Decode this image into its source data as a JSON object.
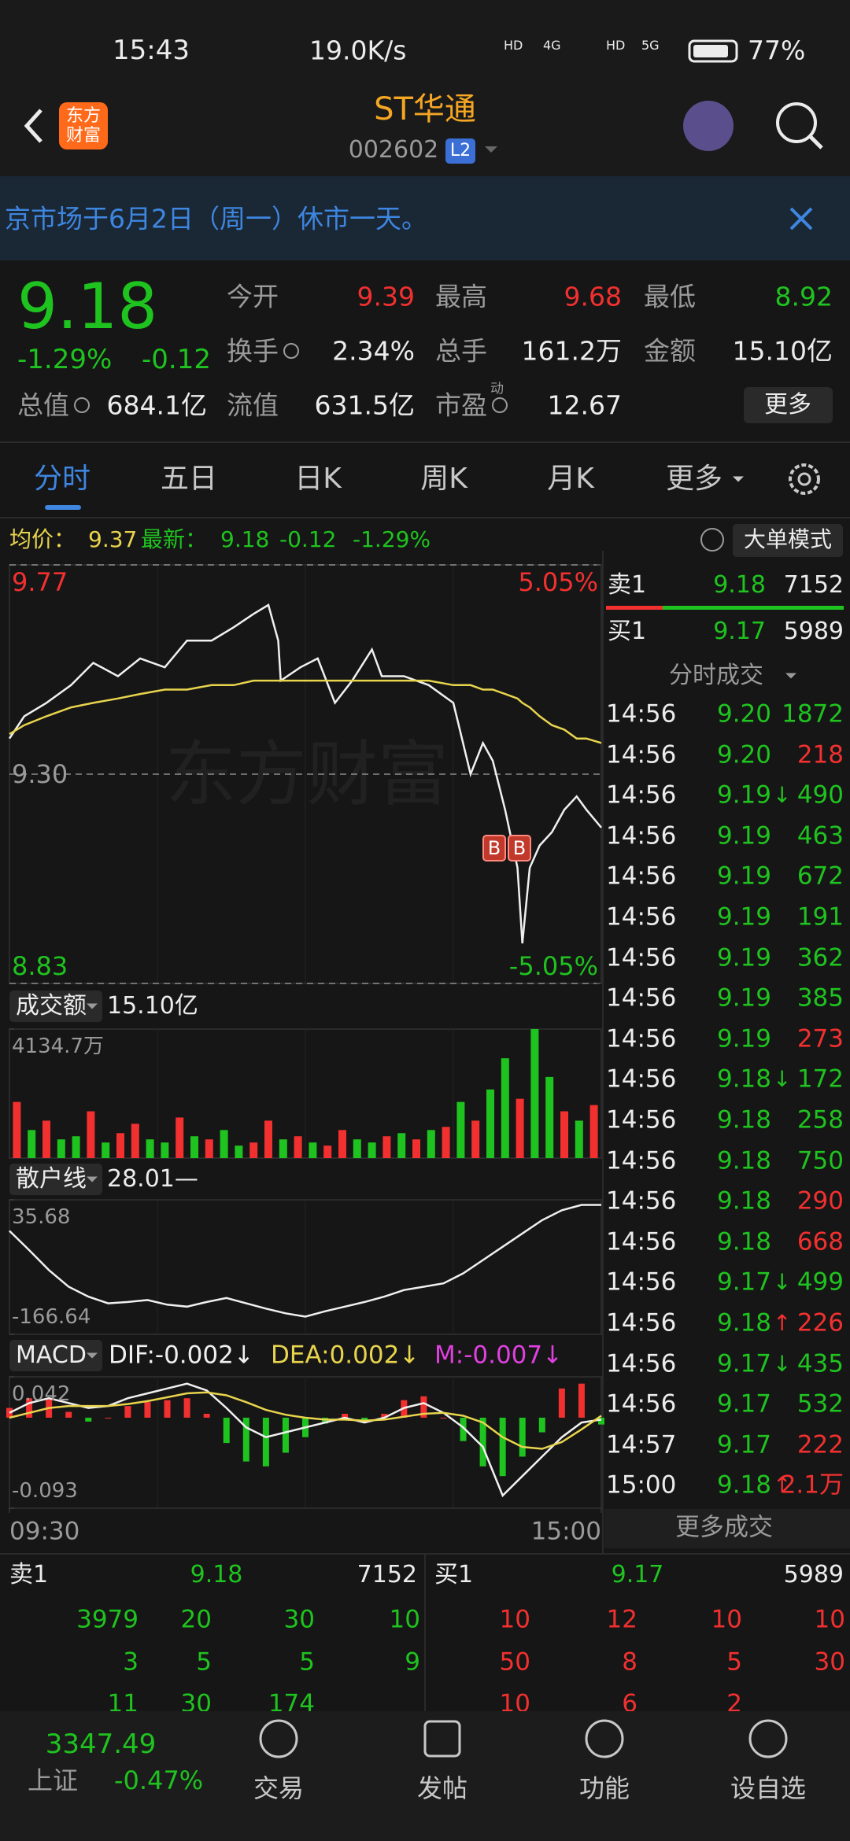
{
  "status_bar": {
    "time": "15:43",
    "speed": "19.0K/s",
    "icons": [
      "HD",
      "4G",
      "HD",
      "5G"
    ],
    "battery": "77%"
  },
  "header": {
    "logo": [
      "东方",
      "财富"
    ],
    "title": "ST华通",
    "code": "002602",
    "level": "L2"
  },
  "notice": {
    "text": "京市场于6月2日（周一）休市一天。"
  },
  "quote": {
    "price": "9.18",
    "change_pct": "-1.29%",
    "change": "-0.12",
    "fields": [
      {
        "label": "今开",
        "value": "9.39",
        "color": "#f23030"
      },
      {
        "label": "最高",
        "value": "9.68",
        "color": "#f23030"
      },
      {
        "label": "最低",
        "value": "8.92",
        "color": "#1fc31f"
      },
      {
        "label": "换手",
        "value": "2.34%"
      },
      {
        "label": "总手",
        "value": "161.2万"
      },
      {
        "label": "金额",
        "value": "15.10亿"
      },
      {
        "label": "总值",
        "value": "684.1亿"
      },
      {
        "label": "流值",
        "value": "631.5亿"
      },
      {
        "label": "市盈",
        "sup": "动",
        "value": "12.67"
      }
    ],
    "more": "更多"
  },
  "tabs": [
    "分时",
    "五日",
    "日K",
    "周K",
    "月K",
    "更多"
  ],
  "info_bar": {
    "avg_label": "均价：",
    "avg": "9.37",
    "latest_label": "最新：",
    "latest": "9.18",
    "change": "-0.12",
    "change_pct": "-1.29%",
    "mode": "大单模式"
  },
  "chart_data": [
    {
      "type": "line",
      "watermark": "东方财富",
      "xlim": [
        0,
        240
      ],
      "x": [
        0,
        6,
        15,
        25,
        34,
        44,
        53,
        63,
        72,
        82,
        91,
        99,
        105,
        109,
        110,
        118,
        125,
        132,
        139,
        147,
        151,
        160,
        170,
        180,
        187,
        192,
        196,
        201,
        206,
        208,
        211,
        215,
        220,
        225,
        230,
        234,
        240
      ],
      "series": [
        {
          "color": "#f0f0f0",
          "values": [
            9.38,
            9.43,
            9.46,
            9.5,
            9.55,
            9.52,
            9.56,
            9.54,
            9.6,
            9.6,
            9.63,
            9.66,
            9.68,
            9.6,
            9.51,
            9.54,
            9.56,
            9.46,
            9.51,
            9.58,
            9.52,
            9.52,
            9.5,
            9.46,
            9.3,
            9.37,
            9.33,
            9.22,
            9.09,
            8.92,
            9.09,
            9.14,
            9.17,
            9.22,
            9.25,
            9.22,
            9.18
          ]
        },
        {
          "color": "#e8d44d",
          "values": [
            9.39,
            9.41,
            9.43,
            9.45,
            9.46,
            9.47,
            9.48,
            9.49,
            9.49,
            9.5,
            9.5,
            9.51,
            9.51,
            9.51,
            9.51,
            9.51,
            9.51,
            9.51,
            9.51,
            9.51,
            9.51,
            9.51,
            9.51,
            9.5,
            9.5,
            9.49,
            9.49,
            9.48,
            9.47,
            9.46,
            9.45,
            9.43,
            9.41,
            9.4,
            9.38,
            9.38,
            9.37
          ]
        }
      ],
      "ylim": [
        8.83,
        9.77
      ],
      "yticks": [
        9.77,
        {
          "value": 9.3,
          "label": "9.30"
        },
        8.83
      ],
      "ytick_colors": [
        "#f23030",
        "#9a9a9a",
        "#1fc31f"
      ],
      "grid": true,
      "y2lim": [
        -5.05,
        5.05
      ],
      "y2ticks": [
        {
          "value": 5.05,
          "label": "5.05%"
        },
        {
          "value": -5.05,
          "label": "-5.05%"
        }
      ],
      "y2tick_colors": [
        "#f23030",
        "#1fc31f"
      ],
      "annotations": [
        "B",
        "B"
      ]
    },
    {
      "type": "bar",
      "title": "成交额",
      "subtitle": "15.10亿",
      "xlim": [
        0,
        240
      ],
      "x": [
        3,
        9,
        15,
        21,
        27,
        33,
        39,
        45,
        51,
        57,
        63,
        69,
        75,
        81,
        87,
        93,
        99,
        105,
        111,
        117,
        123,
        129,
        135,
        141,
        147,
        153,
        159,
        165,
        171,
        177,
        183,
        189,
        195,
        201,
        207,
        213,
        219,
        225,
        231,
        237
      ],
      "values": [
        1800,
        900,
        1200,
        600,
        700,
        1500,
        500,
        800,
        1100,
        600,
        500,
        1300,
        700,
        600,
        900,
        400,
        500,
        1200,
        600,
        700,
        500,
        400,
        900,
        600,
        500,
        700,
        800,
        600,
        900,
        1000,
        1800,
        1200,
        2200,
        3200,
        1900,
        4134.7,
        2600,
        1500,
        1200,
        1700
      ],
      "colors": [
        "#f23030",
        "#1fc31f",
        "#f23030",
        "#1fc31f",
        "#1fc31f",
        "#f23030",
        "#1fc31f",
        "#f23030",
        "#f23030",
        "#1fc31f",
        "#1fc31f",
        "#f23030",
        "#1fc31f",
        "#f23030",
        "#1fc31f",
        "#1fc31f",
        "#f23030",
        "#f23030",
        "#1fc31f",
        "#f23030",
        "#1fc31f",
        "#f23030",
        "#f23030",
        "#1fc31f",
        "#1fc31f",
        "#f23030",
        "#1fc31f",
        "#f23030",
        "#1fc31f",
        "#f23030",
        "#1fc31f",
        "#f23030",
        "#1fc31f",
        "#1fc31f",
        "#f23030",
        "#1fc31f",
        "#1fc31f",
        "#f23030",
        "#1fc31f",
        "#f23030"
      ],
      "ylim": [
        0,
        4134.7
      ],
      "yticks": [
        {
          "value": 4134.7,
          "label": "4134.7万"
        }
      ]
    },
    {
      "type": "line",
      "title": "散户线",
      "subtitle": "28.01—",
      "xlim": [
        0,
        240
      ],
      "x": [
        0,
        8,
        16,
        24,
        32,
        40,
        48,
        56,
        64,
        72,
        80,
        88,
        96,
        104,
        112,
        120,
        128,
        136,
        144,
        152,
        160,
        168,
        176,
        184,
        192,
        200,
        208,
        216,
        224,
        232,
        240
      ],
      "series": [
        {
          "color": "#f0f0f0",
          "values": [
            -11,
            -40,
            -70,
            -95,
            -110,
            -120,
            -118,
            -115,
            -122,
            -125,
            -118,
            -112,
            -120,
            -128,
            -135,
            -140,
            -132,
            -125,
            -118,
            -110,
            -100,
            -95,
            -90,
            -75,
            -55,
            -35,
            -15,
            5,
            20,
            28,
            28.01
          ]
        }
      ],
      "ylim": [
        -166.64,
        35.68
      ],
      "yticks": [
        35.68,
        -166.64
      ]
    },
    {
      "type": "combo",
      "title": "MACD",
      "indicator_labels": [
        "DIF:-0.002↓",
        "DEA:0.002↓",
        "M:-0.007↓"
      ],
      "indicator_colors": [
        "#f0f0f0",
        "#e8d44d",
        "#e040e0"
      ],
      "xlim": [
        0,
        240
      ],
      "x": [
        0,
        8,
        16,
        24,
        32,
        40,
        48,
        56,
        64,
        72,
        80,
        88,
        96,
        104,
        112,
        120,
        128,
        136,
        144,
        152,
        160,
        168,
        176,
        184,
        192,
        200,
        208,
        216,
        224,
        232,
        240
      ],
      "series": [
        {
          "color": "#f0f0f0",
          "values": [
            0.005,
            0.015,
            0.02,
            0.015,
            0.01,
            0.012,
            0.02,
            0.025,
            0.03,
            0.035,
            0.028,
            0.01,
            -0.01,
            -0.02,
            -0.015,
            -0.01,
            -0.005,
            0,
            -0.005,
            0,
            0.01,
            0.015,
            0.005,
            -0.01,
            -0.03,
            -0.08,
            -0.06,
            -0.04,
            -0.02,
            -0.005,
            -0.002
          ]
        },
        {
          "color": "#e8d44d",
          "values": [
            0,
            0.005,
            0.01,
            0.012,
            0.012,
            0.012,
            0.014,
            0.017,
            0.021,
            0.025,
            0.026,
            0.023,
            0.016,
            0.008,
            0.003,
            0,
            -0.002,
            -0.002,
            -0.003,
            -0.002,
            0.001,
            0.004,
            0.005,
            0.002,
            -0.005,
            -0.02,
            -0.03,
            -0.032,
            -0.025,
            -0.012,
            0.002
          ]
        }
      ],
      "histogram": [
        0.01,
        0.02,
        0.02,
        0.006,
        -0.004,
        0,
        0.012,
        0.016,
        0.018,
        0.02,
        0.004,
        -0.026,
        -0.045,
        -0.05,
        -0.036,
        -0.02,
        -0.006,
        0.004,
        -0.004,
        0.004,
        0.018,
        0.022,
        0,
        -0.024,
        -0.05,
        -0.06,
        -0.04,
        -0.015,
        0.03,
        0.035,
        -0.007
      ],
      "histogram_colors": [
        "#f23030",
        "#1fc31f"
      ],
      "ylim": [
        -0.093,
        0.042
      ],
      "yticks": [
        0.042,
        -0.093
      ],
      "xticks": [
        {
          "value": 0,
          "label": "09:30"
        },
        {
          "value": 240,
          "label": "15:00"
        }
      ]
    }
  ],
  "trades": {
    "ask_label": "卖1",
    "ask_price": "9.18",
    "ask_volume": "7152",
    "bid_label": "买1",
    "bid_price": "9.17",
    "bid_volume": "5989",
    "title": "分时成交",
    "more": "更多成交",
    "rows": [
      {
        "time": "14:56",
        "price": "9.20",
        "volume": "1872",
        "volume_color": "#1fc31f"
      },
      {
        "time": "14:56",
        "price": "9.20",
        "volume": "218",
        "volume_color": "#f23030"
      },
      {
        "time": "14:56",
        "price": "9.19",
        "arrow": "↓",
        "arrow_color": "#1fc31f",
        "volume": "490",
        "volume_color": "#1fc31f"
      },
      {
        "time": "14:56",
        "price": "9.19",
        "volume": "463",
        "volume_color": "#1fc31f"
      },
      {
        "time": "14:56",
        "price": "9.19",
        "volume": "672",
        "volume_color": "#1fc31f"
      },
      {
        "time": "14:56",
        "price": "9.19",
        "volume": "191",
        "volume_color": "#1fc31f"
      },
      {
        "time": "14:56",
        "price": "9.19",
        "volume": "362",
        "volume_color": "#1fc31f"
      },
      {
        "time": "14:56",
        "price": "9.19",
        "volume": "385",
        "volume_color": "#1fc31f"
      },
      {
        "time": "14:56",
        "price": "9.19",
        "volume": "273",
        "volume_color": "#f23030"
      },
      {
        "time": "14:56",
        "price": "9.18",
        "arrow": "↓",
        "arrow_color": "#1fc31f",
        "volume": "172",
        "volume_color": "#1fc31f"
      },
      {
        "time": "14:56",
        "price": "9.18",
        "volume": "258",
        "volume_color": "#1fc31f"
      },
      {
        "time": "14:56",
        "price": "9.18",
        "volume": "750",
        "volume_color": "#1fc31f"
      },
      {
        "time": "14:56",
        "price": "9.18",
        "volume": "290",
        "volume_color": "#f23030"
      },
      {
        "time": "14:56",
        "price": "9.18",
        "volume": "668",
        "volume_color": "#f23030"
      },
      {
        "time": "14:56",
        "price": "9.17",
        "arrow": "↓",
        "arrow_color": "#1fc31f",
        "volume": "499",
        "volume_color": "#1fc31f"
      },
      {
        "time": "14:56",
        "price": "9.18",
        "arrow": "↑",
        "arrow_color": "#f23030",
        "volume": "226",
        "volume_color": "#f23030"
      },
      {
        "time": "14:56",
        "price": "9.17",
        "arrow": "↓",
        "arrow_color": "#1fc31f",
        "volume": "435",
        "volume_color": "#1fc31f"
      },
      {
        "time": "14:56",
        "price": "9.17",
        "volume": "532",
        "volume_color": "#1fc31f"
      },
      {
        "time": "14:57",
        "price": "9.17",
        "volume": "222",
        "volume_color": "#f23030"
      },
      {
        "time": "15:00",
        "price": "9.18",
        "arrow": "↑",
        "arrow_color": "#f23030",
        "volume": "2.1万",
        "volume_color": "#f23030"
      }
    ]
  },
  "order_book": {
    "ask": {
      "label": "卖1",
      "price": "9.18",
      "volume": "7152",
      "color": "#1fc31f",
      "rows": [
        [
          "3979",
          "20",
          "30",
          "10"
        ],
        [
          "3",
          "5",
          "5",
          "9"
        ],
        [
          "11",
          "30",
          "174"
        ]
      ]
    },
    "bid": {
      "label": "买1",
      "price": "9.17",
      "volume": "5989",
      "color": "#f23030",
      "rows": [
        [
          "10",
          "12",
          "10",
          "10"
        ],
        [
          "50",
          "8",
          "5",
          "30"
        ],
        [
          "10",
          "6",
          "2"
        ]
      ]
    }
  },
  "bottom_nav": {
    "index_value": "3347.49",
    "index_name": "上证",
    "index_change": "-0.47%",
    "items": [
      "交易",
      "发帖",
      "功能",
      "设自选"
    ]
  }
}
